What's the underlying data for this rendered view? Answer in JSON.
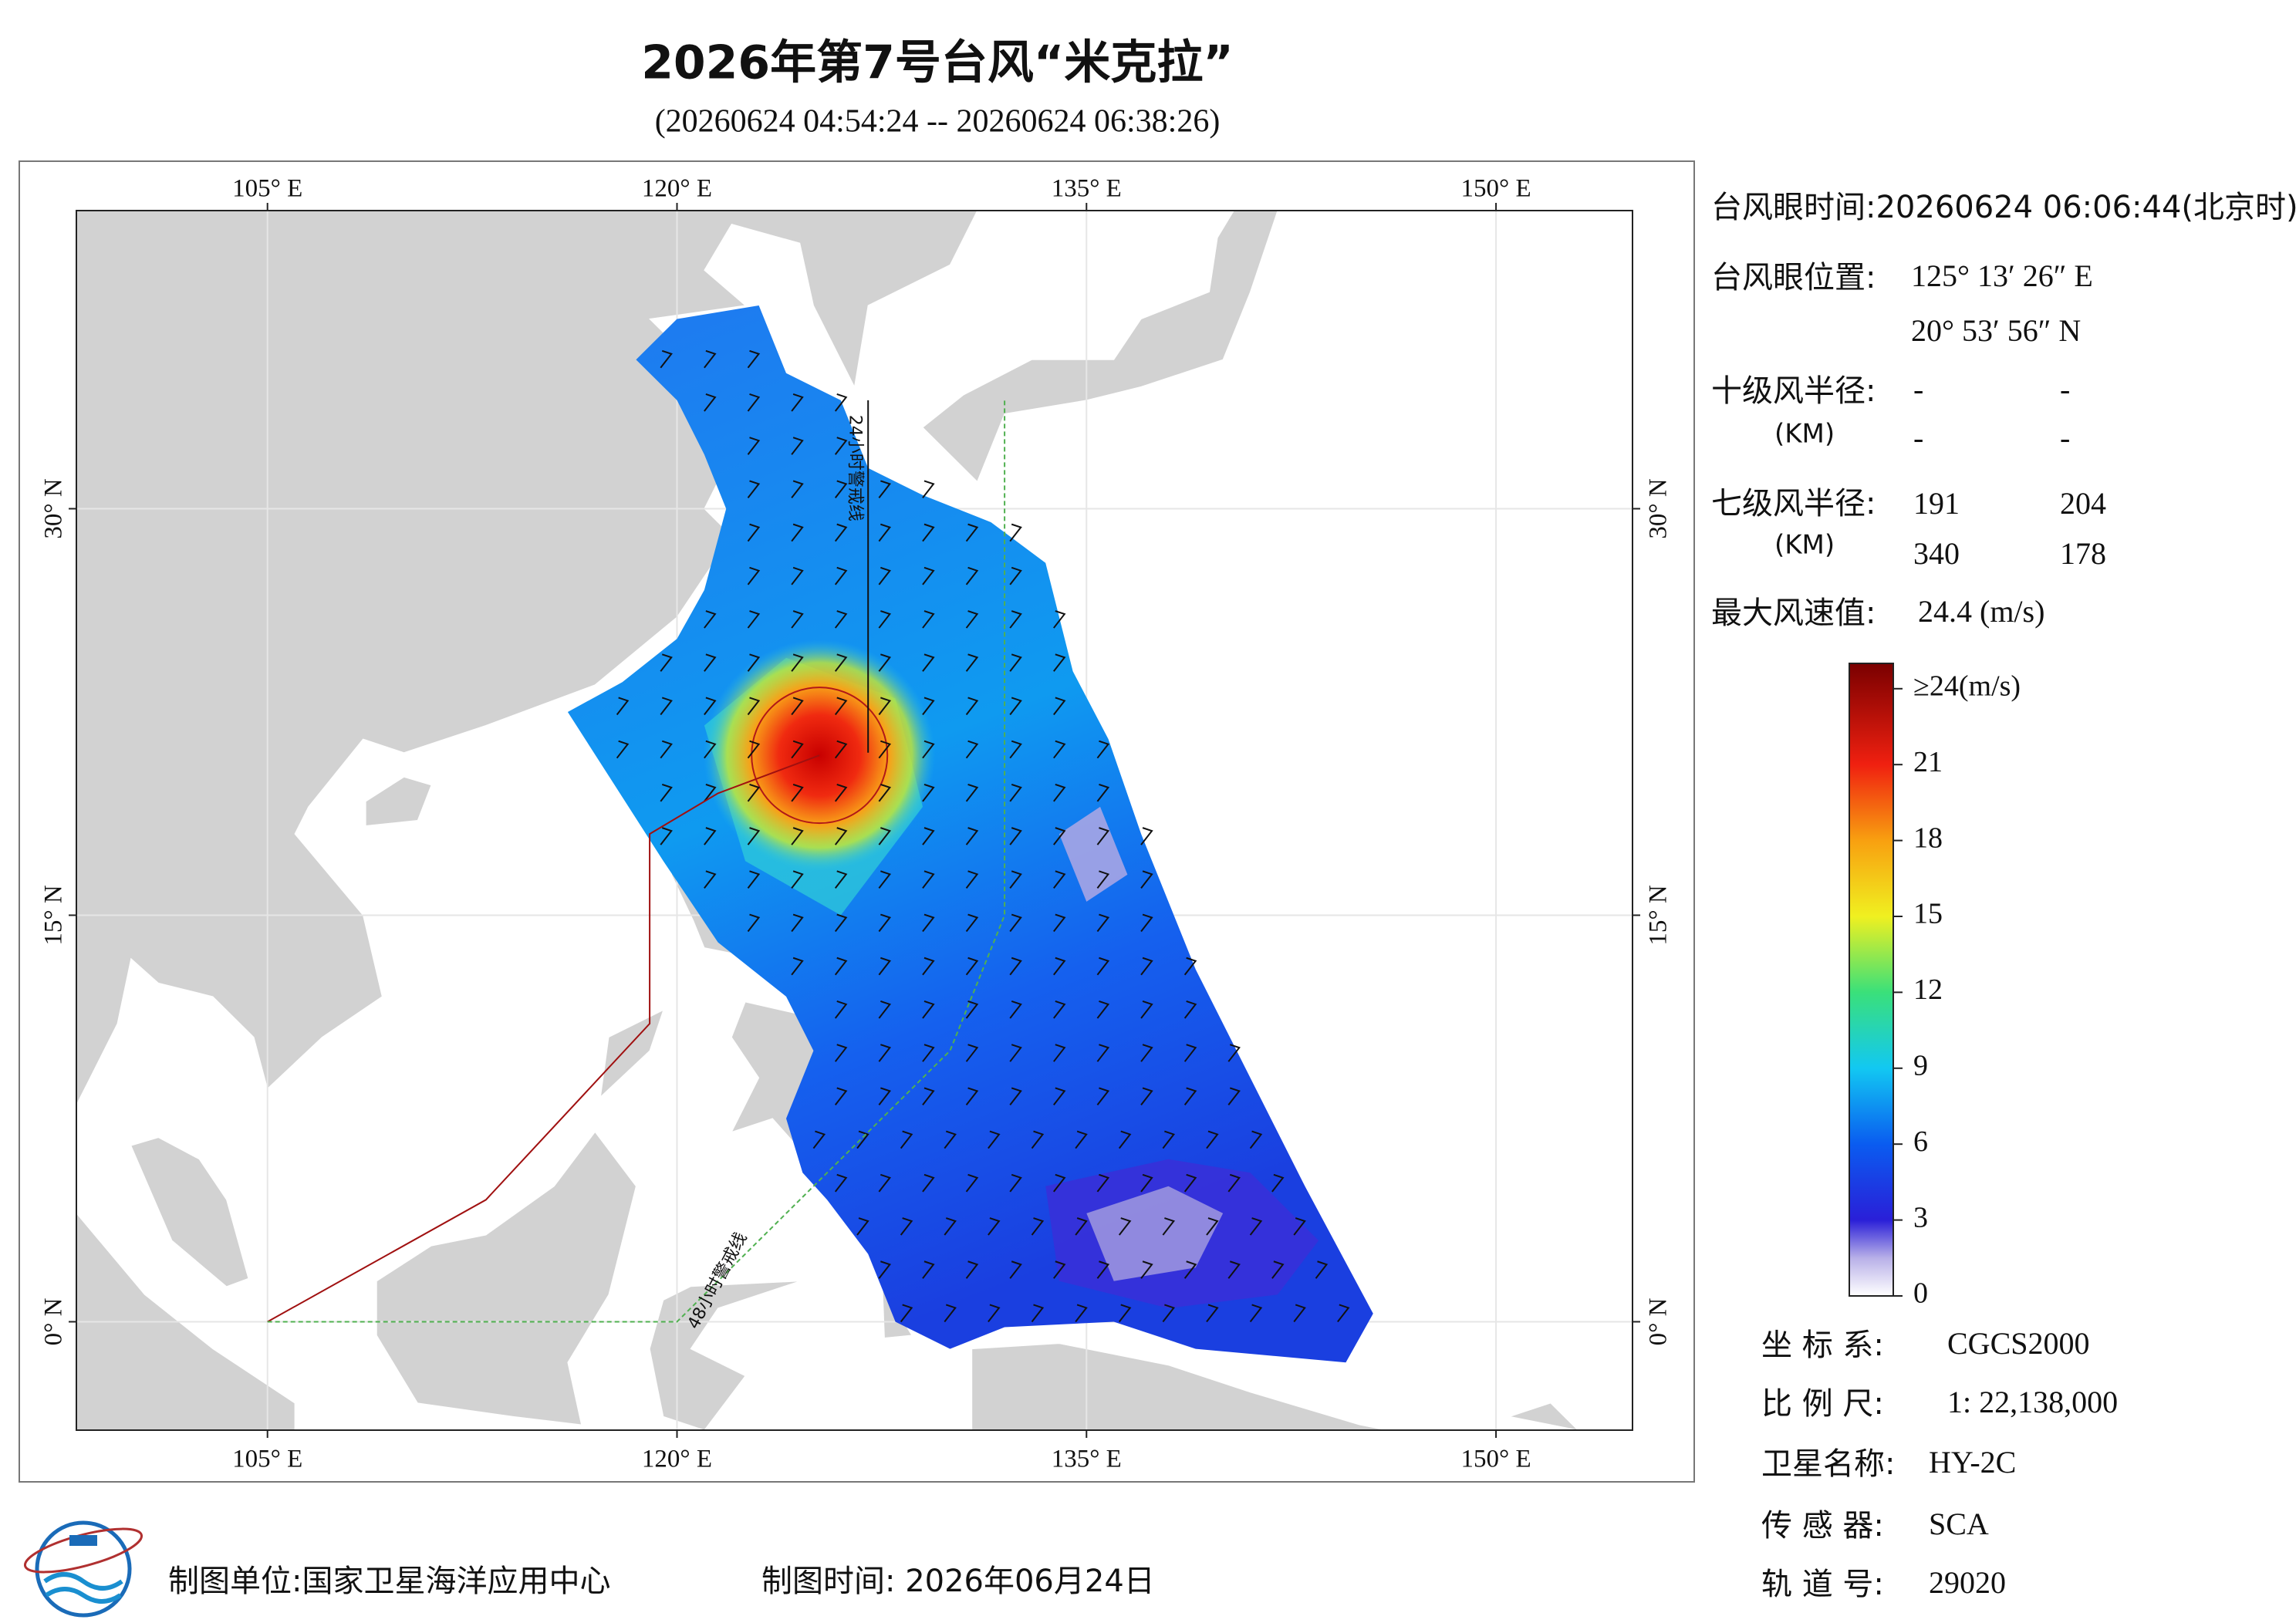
{
  "header": {
    "title": "2026年第7号台风“米克拉”",
    "subtitle": "(20260624 04:54:24 -- 20260624 06:38:26)"
  },
  "map": {
    "xlim": [
      98,
      155
    ],
    "ylim": [
      -4,
      41
    ],
    "xticks": [
      {
        "value": 105,
        "label": "105° E"
      },
      {
        "value": 120,
        "label": "120° E"
      },
      {
        "value": 135,
        "label": "135° E"
      },
      {
        "value": 150,
        "label": "150° E"
      }
    ],
    "yticks": [
      {
        "value": 0,
        "label": "0° N"
      },
      {
        "value": 15,
        "label": "15° N"
      },
      {
        "value": 30,
        "label": "30° N"
      }
    ],
    "grid": true,
    "line_24h_label": "24小时警戒线",
    "line_48h_label": "48小时警戒线"
  },
  "info": {
    "eye_time": "台风眼时间:20260624 06:06:44(北京时)",
    "eye_position_label": "台风眼位置:",
    "eye_lon": "125° 13′ 26″ E",
    "eye_lat": "20° 53′ 56″ N",
    "r10_label": "十级风半径:",
    "r10_unit": "(KM)",
    "r10_values": [
      "-",
      "-",
      "-",
      "-"
    ],
    "r7_label": "七级风半径:",
    "r7_unit": "(KM)",
    "r7_values": [
      "191",
      "204",
      "340",
      "178"
    ],
    "max_wind_label": "最大风速值:",
    "max_wind_value": "24.4  (m/s)"
  },
  "colorbar": {
    "clim": [
      0,
      25
    ],
    "ticks": [
      0,
      3,
      6,
      9,
      12,
      15,
      18,
      21,
      {
        "value": 24,
        "label": "≥24(m/s)"
      }
    ]
  },
  "meta": {
    "crs_label": "坐 标 系:",
    "crs_value": "CGCS2000",
    "scale_label": "比 例 尺:",
    "scale_value": "1: 22,138,000",
    "satellite_label": "卫星名称:",
    "satellite_value": "HY-2C",
    "sensor_label": "传 感 器:",
    "sensor_value": "SCA",
    "orbit_label": "轨 道 号:",
    "orbit_value": "29020"
  },
  "footer": {
    "unit": "制图单位:国家卫星海洋应用中心",
    "date": "制图时间:  2026年06月24日"
  }
}
